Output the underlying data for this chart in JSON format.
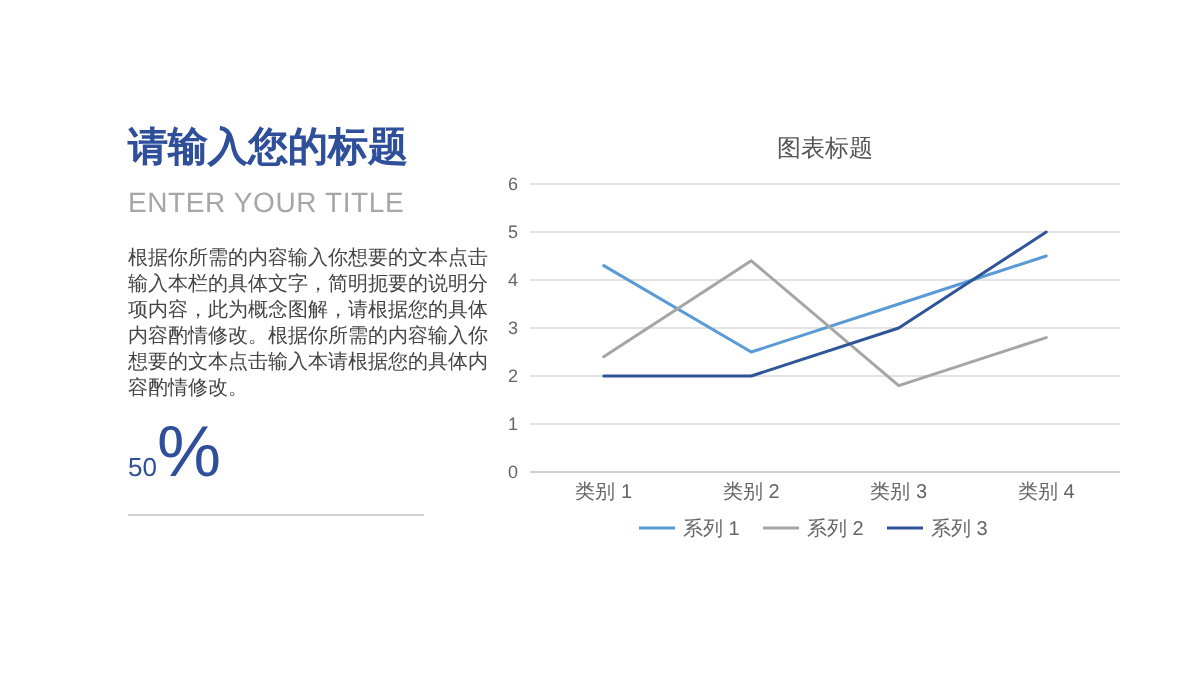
{
  "chart_data": [
    {
      "type": "other",
      "title": "请输入您的标题",
      "subtitle": "ENTER YOUR TITLE",
      "annotations": [
        "根据你所需的内容输入你想要的文本点击输入本栏的具体文字，简明扼要的说明分项内容，此为概念图解，请根据您的具体内容酌情修改。根据你所需的内容输入你想要的文本点击输入本请根据您的具体内容酌情修改。",
        "50",
        "%"
      ]
    },
    {
      "type": "line",
      "title": "图表标题",
      "categories": [
        "类别 1",
        "类别 2",
        "类别 3",
        "类别 4"
      ],
      "series": [
        {
          "name": "系列 1",
          "color": "#5a9bd5",
          "values": [
            4.3,
            2.5,
            3.5,
            4.5
          ]
        },
        {
          "name": "系列 2",
          "color": "#a5a5a5",
          "values": [
            2.4,
            4.4,
            1.8,
            2.8
          ]
        },
        {
          "name": "系列 3",
          "color": "#2f5597",
          "values": [
            2,
            2,
            3,
            5
          ]
        }
      ],
      "ylim": [
        0,
        6
      ],
      "yticks": [
        0,
        1,
        2,
        3,
        4,
        5,
        6
      ],
      "grid": "y",
      "legend": "bottom"
    }
  ]
}
